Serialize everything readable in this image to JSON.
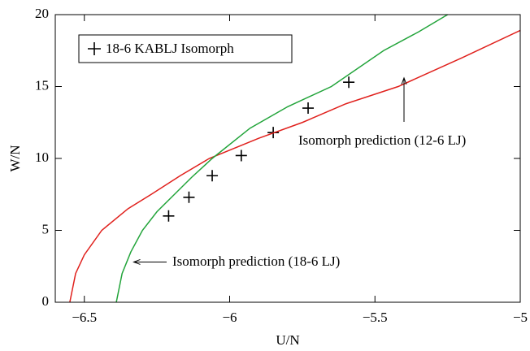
{
  "chart_data": {
    "type": "line",
    "xlabel": "U/N",
    "ylabel": "W/N",
    "xlim": [
      -6.6,
      -5
    ],
    "ylim": [
      0,
      20
    ],
    "xticks": [
      {
        "value": -6.5,
        "label": "−6.5"
      },
      {
        "value": -6,
        "label": "−6"
      },
      {
        "value": -5.5,
        "label": "−5.5"
      },
      {
        "value": -5,
        "label": "−5"
      }
    ],
    "yticks": [
      0,
      5,
      10,
      15,
      20
    ],
    "legend_position": "upper left",
    "series": [
      {
        "name": "18-6 KABLJ Isomorph",
        "kind": "marker",
        "color": "#000000",
        "x": [
          -6.21,
          -6.14,
          -6.06,
          -5.96,
          -5.85,
          -5.73,
          -5.59
        ],
        "values": [
          6.0,
          7.3,
          8.8,
          10.2,
          11.8,
          13.5,
          15.3
        ]
      },
      {
        "kind": "curve",
        "color": "#e0201c",
        "x": [
          -6.55,
          -6.53,
          -6.5,
          -6.44,
          -6.35,
          -6.27,
          -6.17,
          -6.07,
          -5.9,
          -5.75,
          -5.6,
          -5.42,
          -5.2,
          -5.0
        ],
        "values": [
          0,
          2.0,
          3.3,
          5.0,
          6.5,
          7.5,
          8.8,
          10.0,
          11.4,
          12.5,
          13.8,
          15.0,
          17.0,
          18.9
        ]
      },
      {
        "kind": "curve",
        "color": "#22a43a",
        "x": [
          -6.39,
          -6.37,
          -6.34,
          -6.3,
          -6.25,
          -6.19,
          -6.13,
          -6.06,
          -5.93,
          -5.8,
          -5.65,
          -5.47,
          -5.35,
          -5.25
        ],
        "values": [
          0,
          2.0,
          3.5,
          5.0,
          6.3,
          7.5,
          8.7,
          10.0,
          12.1,
          13.6,
          15.0,
          17.5,
          18.8,
          20.0
        ]
      }
    ],
    "annotations": [
      {
        "text": "Isomorph prediction (12-6 LJ)",
        "x": -5.4,
        "y": 15.6
      },
      {
        "text": "Isomorph prediction (18-6 LJ)",
        "x": -6.33,
        "y": 2.8
      }
    ]
  }
}
